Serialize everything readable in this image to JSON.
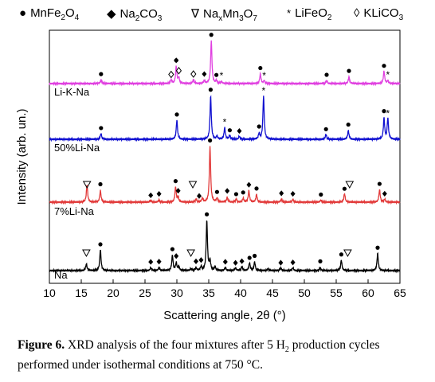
{
  "legend": [
    {
      "symbol": "●",
      "name_parts": [
        "MnFe",
        "2",
        "O",
        "4",
        ""
      ],
      "icon": "filled-circle"
    },
    {
      "symbol": "◆",
      "name_parts": [
        "Na",
        "2",
        "CO",
        "3",
        ""
      ],
      "icon": "filled-diamond"
    },
    {
      "symbol": "∇",
      "name_parts": [
        "Na",
        "x",
        "Mn",
        "3",
        "O",
        "7",
        ""
      ],
      "icon": "open-triangle-down"
    },
    {
      "symbol": "*",
      "name_parts": [
        "LiFeO",
        "2",
        ""
      ],
      "icon": "asterisk"
    },
    {
      "symbol": "◊",
      "name_parts": [
        "KLiCO",
        "3",
        ""
      ],
      "icon": "open-diamond"
    }
  ],
  "caption": {
    "label": "Figure 6.",
    "text_before": " XRD analysis of the four mixtures after 5 H",
    "sub": "2",
    "text_after": " production cycles performed under isothermal conditions at 750 °C."
  },
  "chart_data": {
    "type": "line",
    "xlabel": "Scattering angle, 2θ (°)",
    "ylabel": "Intensity (arb. un.)",
    "xlim": [
      10,
      65
    ],
    "xticks": [
      "10",
      "15",
      "20",
      "25",
      "30",
      "35",
      "40",
      "45",
      "50",
      "55",
      "60",
      "65"
    ],
    "grid": false,
    "colors": {
      "Na": "#000000",
      "7%Li-Na": "#e23a3a",
      "50%Li-Na": "#1010d0",
      "Li-K-Na": "#e040e0"
    },
    "series": [
      {
        "name": "Na",
        "label": "Na",
        "color": "#000000",
        "offset": 0,
        "peaks": [
          [
            15.8,
            7
          ],
          [
            18.0,
            22
          ],
          [
            25.9,
            3
          ],
          [
            27.2,
            3
          ],
          [
            29.3,
            16
          ],
          [
            29.9,
            8
          ],
          [
            30.3,
            4
          ],
          [
            32.2,
            2
          ],
          [
            33.0,
            3
          ],
          [
            33.8,
            4
          ],
          [
            34.7,
            52
          ],
          [
            35.2,
            10
          ],
          [
            36.0,
            4
          ],
          [
            37.6,
            3
          ],
          [
            39.2,
            3
          ],
          [
            40.2,
            4
          ],
          [
            41.4,
            8
          ],
          [
            42.2,
            9
          ],
          [
            44.3,
            2
          ],
          [
            46.3,
            3
          ],
          [
            48.2,
            3
          ],
          [
            52.5,
            3
          ],
          [
            55.8,
            11
          ],
          [
            61.5,
            18
          ]
        ],
        "markers": [
          [
            18.0,
            "circle"
          ],
          [
            25.9,
            "diamond"
          ],
          [
            27.2,
            "diamond"
          ],
          [
            29.3,
            "circle"
          ],
          [
            29.9,
            "diamond"
          ],
          [
            34.7,
            "circle"
          ],
          [
            33.8,
            "diamond"
          ],
          [
            33.0,
            "diamond"
          ],
          [
            37.6,
            "diamond"
          ],
          [
            39.2,
            "diamond"
          ],
          [
            40.2,
            "diamond"
          ],
          [
            41.4,
            "circle"
          ],
          [
            42.2,
            "circle"
          ],
          [
            46.3,
            "diamond"
          ],
          [
            48.2,
            "diamond"
          ],
          [
            52.5,
            "circle"
          ],
          [
            55.8,
            "circle"
          ],
          [
            61.5,
            "circle"
          ],
          [
            15.8,
            "triangle"
          ],
          [
            32.2,
            "triangle"
          ],
          [
            56.8,
            "triangle"
          ]
        ]
      },
      {
        "name": "7%Li-Na",
        "label": "7%Li-Na",
        "color": "#e23a3a",
        "offset": 1,
        "peaks": [
          [
            15.9,
            18
          ],
          [
            18.0,
            12
          ],
          [
            25.9,
            2
          ],
          [
            27.2,
            2
          ],
          [
            29.8,
            16
          ],
          [
            30.2,
            5
          ],
          [
            33.0,
            3
          ],
          [
            34.0,
            4
          ],
          [
            35.2,
            58
          ],
          [
            36.3,
            4
          ],
          [
            37.9,
            5
          ],
          [
            39.3,
            3
          ],
          [
            40.4,
            4
          ],
          [
            41.3,
            12
          ],
          [
            42.5,
            8
          ],
          [
            46.4,
            3
          ],
          [
            48.2,
            3
          ],
          [
            52.6,
            2
          ],
          [
            56.3,
            9
          ],
          [
            61.8,
            13
          ],
          [
            62.6,
            3
          ]
        ],
        "markers": [
          [
            18.0,
            "circle"
          ],
          [
            25.9,
            "diamond"
          ],
          [
            27.2,
            "diamond"
          ],
          [
            29.8,
            "circle"
          ],
          [
            30.2,
            "diamond"
          ],
          [
            33.5,
            "diamond"
          ],
          [
            35.2,
            "circle"
          ],
          [
            36.3,
            "circle"
          ],
          [
            37.9,
            "diamond"
          ],
          [
            39.3,
            "circle"
          ],
          [
            40.4,
            "circle"
          ],
          [
            41.3,
            "diamond"
          ],
          [
            42.5,
            "circle"
          ],
          [
            46.4,
            "diamond"
          ],
          [
            48.2,
            "diamond"
          ],
          [
            52.6,
            "circle"
          ],
          [
            56.3,
            "circle"
          ],
          [
            61.8,
            "circle"
          ],
          [
            62.6,
            "diamond"
          ],
          [
            15.9,
            "triangle"
          ],
          [
            32.5,
            "triangle"
          ],
          [
            57.1,
            "triangle"
          ]
        ]
      },
      {
        "name": "50%Li-Na",
        "label": "50%Li-Na",
        "color": "#1010d0",
        "offset": 2,
        "peaks": [
          [
            18.1,
            6
          ],
          [
            30.0,
            20
          ],
          [
            35.3,
            45
          ],
          [
            36.3,
            3
          ],
          [
            37.5,
            12
          ],
          [
            38.3,
            4
          ],
          [
            39.8,
            3
          ],
          [
            42.9,
            6
          ],
          [
            43.6,
            45
          ],
          [
            53.4,
            5
          ],
          [
            56.9,
            9
          ],
          [
            62.5,
            22
          ],
          [
            63.1,
            22
          ]
        ],
        "markers": [
          [
            18.1,
            "circle"
          ],
          [
            30.0,
            "circle"
          ],
          [
            35.3,
            "circle"
          ],
          [
            38.3,
            "circle"
          ],
          [
            39.8,
            "diamond"
          ],
          [
            42.9,
            "circle"
          ],
          [
            53.4,
            "circle"
          ],
          [
            56.9,
            "circle"
          ],
          [
            62.5,
            "circle"
          ],
          [
            37.5,
            "asterisk"
          ],
          [
            43.6,
            "asterisk"
          ],
          [
            63.1,
            "asterisk"
          ]
        ]
      },
      {
        "name": "Li-K-Na",
        "label": "Li-K-Na",
        "color": "#e040e0",
        "offset": 3,
        "peaks": [
          [
            18.1,
            4
          ],
          [
            29.1,
            4
          ],
          [
            29.9,
            18
          ],
          [
            30.3,
            6
          ],
          [
            32.6,
            4
          ],
          [
            34.3,
            3
          ],
          [
            35.4,
            45
          ],
          [
            36.2,
            3
          ],
          [
            37.0,
            2
          ],
          [
            43.1,
            10
          ],
          [
            43.7,
            3
          ],
          [
            53.5,
            3
          ],
          [
            57.0,
            7
          ],
          [
            62.5,
            13
          ],
          [
            63.1,
            3
          ]
        ],
        "markers": [
          [
            18.1,
            "circle"
          ],
          [
            29.9,
            "circle"
          ],
          [
            35.4,
            "circle"
          ],
          [
            36.2,
            "circle"
          ],
          [
            43.1,
            "circle"
          ],
          [
            53.5,
            "circle"
          ],
          [
            57.0,
            "circle"
          ],
          [
            62.5,
            "circle"
          ],
          [
            29.1,
            "odiamond"
          ],
          [
            30.3,
            "odiamond"
          ],
          [
            32.6,
            "odiamond"
          ],
          [
            29.9,
            "diamond"
          ],
          [
            34.3,
            "diamond"
          ],
          [
            37.0,
            "asterisk"
          ],
          [
            43.7,
            "asterisk"
          ],
          [
            63.1,
            "asterisk"
          ]
        ]
      }
    ]
  }
}
